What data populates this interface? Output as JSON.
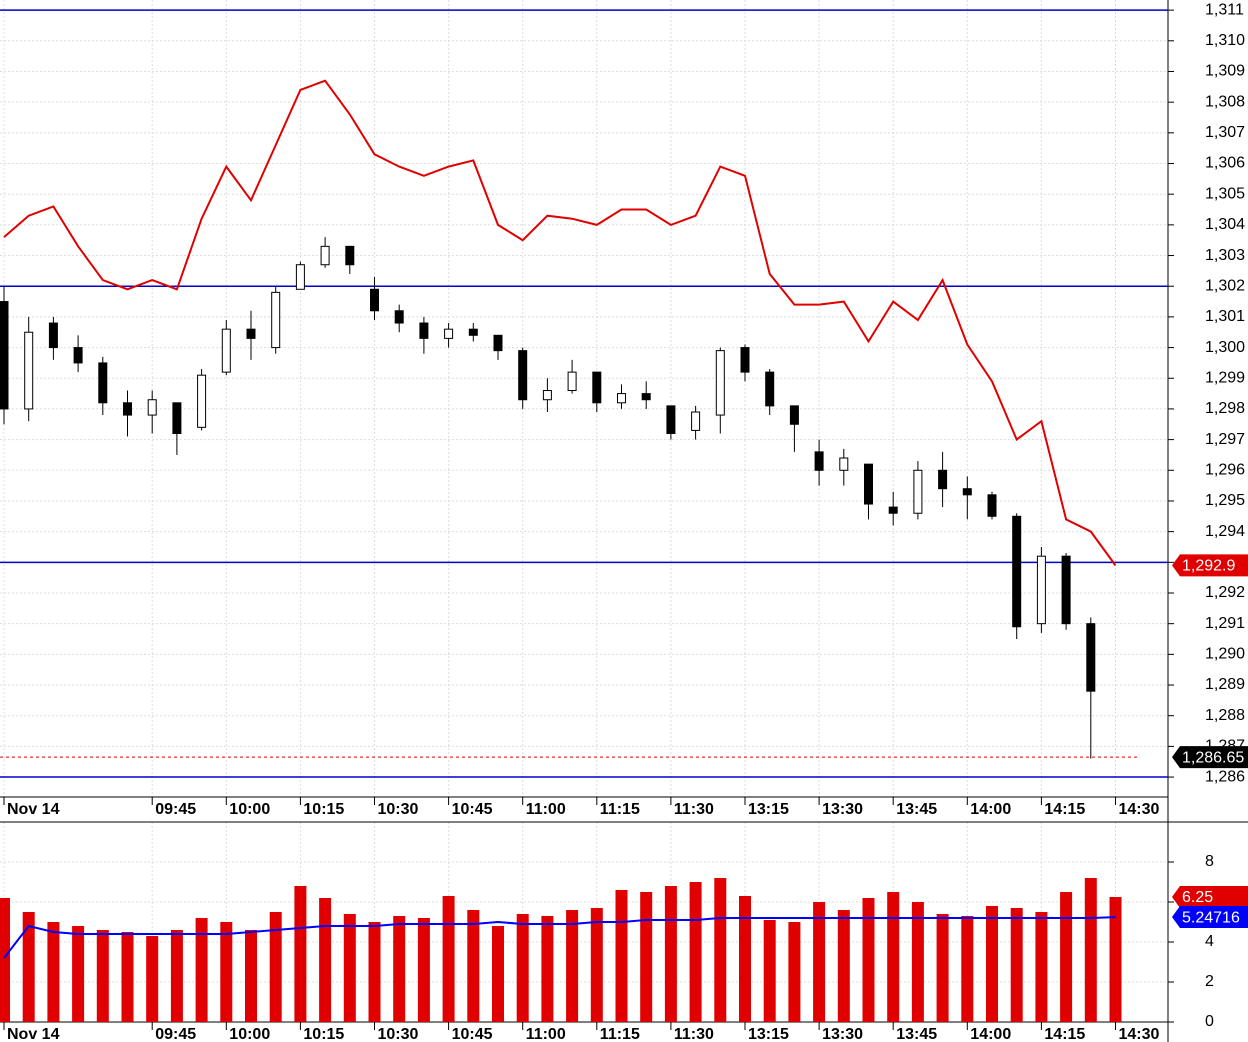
{
  "chart_data": [
    {
      "type": "candlestick",
      "categories": [
        "Nov 14",
        null,
        null,
        null,
        null,
        null,
        "09:45",
        null,
        null,
        "10:00",
        null,
        null,
        "10:15",
        null,
        null,
        "10:30",
        null,
        null,
        "10:45",
        null,
        null,
        "11:00",
        null,
        null,
        "11:15",
        null,
        null,
        "11:30",
        null,
        null,
        "13:15",
        null,
        null,
        "13:30",
        null,
        null,
        "13:45",
        null,
        null,
        "14:00",
        null,
        null,
        "14:15",
        null,
        null,
        "14:30"
      ],
      "candles": {
        "open": [
          1301.5,
          1298,
          1300.8,
          1300,
          1299.5,
          1298.2,
          1297.8,
          1298.2,
          1297.4,
          1299.2,
          1300.6,
          1300,
          1301.9,
          1302.7,
          1303.3,
          1301.9,
          1301.2,
          1300.8,
          1300.3,
          1300.6,
          1300.4,
          1299.9,
          1298.3,
          1298.6,
          1299.2,
          1298.2,
          1298.5,
          1298.1,
          1297.3,
          1297.8,
          1300,
          1299.2,
          1298.1,
          1296.6,
          1296,
          1296.2,
          1294.8,
          1294.6,
          1296,
          1295.4,
          1295.2,
          1294.5,
          1291,
          1293.2,
          1291,
          null
        ],
        "high": [
          1302,
          1301,
          1301,
          1300.4,
          1299.7,
          1298.6,
          1298.6,
          1298.2,
          1299.3,
          1300.9,
          1301.2,
          1302,
          1302.8,
          1303.6,
          1303.3,
          1302.3,
          1301.4,
          1301,
          1300.8,
          1300.8,
          1300.4,
          1300,
          1299,
          1299.6,
          1299.2,
          1298.8,
          1298.9,
          1298.1,
          1298.1,
          1300,
          1300.1,
          1299.3,
          1298.1,
          1297,
          1296.7,
          1296.2,
          1295.3,
          1296.3,
          1296.6,
          1295.8,
          1295.3,
          1294.6,
          1293.5,
          1293.3,
          1291.2,
          null
        ],
        "low": [
          1297.5,
          1297.6,
          1299.6,
          1299.2,
          1297.8,
          1297.1,
          1297.2,
          1296.5,
          1297.3,
          1299.1,
          1299.6,
          1299.8,
          1301.9,
          1302.6,
          1302.4,
          1300.9,
          1300.5,
          1299.8,
          1300,
          1300.2,
          1299.6,
          1298,
          1297.9,
          1298.5,
          1297.9,
          1298,
          1298,
          1297,
          1297,
          1297.2,
          1298.9,
          1297.8,
          1296.6,
          1295.5,
          1295.5,
          1294.4,
          1294.2,
          1294.4,
          1294.8,
          1294.4,
          1294.4,
          1290.5,
          1290.7,
          1290.8,
          1286.6,
          null
        ],
        "close": [
          1298,
          1300.5,
          1300,
          1299.5,
          1298.2,
          1297.8,
          1298.3,
          1297.2,
          1299.1,
          1300.6,
          1300.3,
          1301.8,
          1302.7,
          1303.3,
          1302.7,
          1301.2,
          1300.8,
          1300.3,
          1300.6,
          1300.4,
          1299.9,
          1298.3,
          1298.6,
          1299.2,
          1298.2,
          1298.5,
          1298.3,
          1297.2,
          1297.9,
          1299.9,
          1299.2,
          1298.1,
          1297.5,
          1296,
          1296.4,
          1294.9,
          1294.6,
          1296,
          1295.4,
          1295.2,
          1294.5,
          1290.9,
          1293.2,
          1291,
          1288.8,
          null
        ]
      },
      "line": {
        "color": "#e00000",
        "values": [
          1303.6,
          1304.3,
          1304.6,
          1303.3,
          1302.2,
          1301.9,
          1302.2,
          1301.9,
          1304.2,
          1305.9,
          1304.8,
          1306.6,
          1308.4,
          1308.7,
          1307.6,
          1306.3,
          1305.9,
          1305.6,
          1305.9,
          1306.1,
          1304,
          1303.5,
          1304.3,
          1304.2,
          1304,
          1304.5,
          1304.5,
          1304,
          1304.3,
          1305.9,
          1305.6,
          1302.4,
          1301.4,
          1301.4,
          1301.5,
          1300.2,
          1301.5,
          1300.9,
          1302.2,
          1300.1,
          1298.9,
          1297,
          1297.6,
          1294.4,
          1294,
          1292.9
        ]
      },
      "hlines": {
        "color": "#0000cc",
        "values": [
          1311,
          1302,
          1293,
          1286
        ]
      },
      "markers": [
        {
          "value": 1292.9,
          "label": "1,292.9",
          "color": "#e00000"
        },
        {
          "value": 1286.65,
          "label": "1,286.65",
          "color": "#000000",
          "dashed": true
        }
      ],
      "ylim": [
        1285.35,
        1311.33
      ],
      "yticks": [
        {
          "value": 1286,
          "label": "1,286"
        },
        {
          "value": 1287,
          "label": "1,287"
        },
        {
          "value": 1288,
          "label": "1,288"
        },
        {
          "value": 1289,
          "label": "1,289"
        },
        {
          "value": 1290,
          "label": "1,290"
        },
        {
          "value": 1291,
          "label": "1,291"
        },
        {
          "value": 1292,
          "label": "1,292"
        },
        {
          "value": 1293,
          "label": "1,293"
        },
        {
          "value": 1294,
          "label": "1,294"
        },
        {
          "value": 1295,
          "label": "1,295"
        },
        {
          "value": 1296,
          "label": "1,296"
        },
        {
          "value": 1297,
          "label": "1,297"
        },
        {
          "value": 1298,
          "label": "1,298"
        },
        {
          "value": 1299,
          "label": "1,299"
        },
        {
          "value": 1300,
          "label": "1,300"
        },
        {
          "value": 1301,
          "label": "1,301"
        },
        {
          "value": 1302,
          "label": "1,302"
        },
        {
          "value": 1303,
          "label": "1,303"
        },
        {
          "value": 1304,
          "label": "1,304"
        },
        {
          "value": 1305,
          "label": "1,305"
        },
        {
          "value": 1306,
          "label": "1,306"
        },
        {
          "value": 1307,
          "label": "1,307"
        },
        {
          "value": 1308,
          "label": "1,308"
        },
        {
          "value": 1309,
          "label": "1,309"
        },
        {
          "value": 1310,
          "label": "1,310"
        },
        {
          "value": 1311,
          "label": "1,311"
        }
      ],
      "grid": true
    },
    {
      "type": "bar",
      "categories": [
        "Nov 14",
        null,
        null,
        null,
        null,
        null,
        "09:45",
        null,
        null,
        "10:00",
        null,
        null,
        "10:15",
        null,
        null,
        "10:30",
        null,
        null,
        "10:45",
        null,
        null,
        "11:00",
        null,
        null,
        "11:15",
        null,
        null,
        "11:30",
        null,
        null,
        "13:15",
        null,
        null,
        "13:30",
        null,
        null,
        "13:45",
        null,
        null,
        "14:00",
        null,
        null,
        "14:15",
        null,
        null,
        "14:30"
      ],
      "values": [
        6.2,
        5.5,
        5.0,
        4.8,
        4.6,
        4.5,
        4.3,
        4.6,
        5.2,
        5.0,
        4.6,
        5.5,
        6.8,
        6.2,
        5.4,
        5.0,
        5.3,
        5.2,
        6.3,
        5.6,
        4.8,
        5.4,
        5.3,
        5.6,
        5.7,
        6.6,
        6.5,
        6.8,
        7.0,
        7.2,
        6.3,
        5.1,
        5.0,
        6.0,
        5.6,
        6.2,
        6.5,
        6.0,
        5.4,
        5.3,
        5.8,
        5.7,
        5.5,
        6.5,
        7.2,
        6.25
      ],
      "color": "#e00000",
      "line": {
        "color": "#0000ff",
        "values": [
          3.2,
          4.8,
          4.5,
          4.4,
          4.4,
          4.4,
          4.4,
          4.4,
          4.4,
          4.4,
          4.5,
          4.6,
          4.7,
          4.8,
          4.8,
          4.8,
          4.9,
          4.9,
          4.9,
          4.9,
          5.0,
          4.9,
          4.9,
          4.9,
          5.0,
          5.0,
          5.1,
          5.1,
          5.1,
          5.2,
          5.2,
          5.2,
          5.2,
          5.2,
          5.2,
          5.2,
          5.2,
          5.2,
          5.2,
          5.2,
          5.2,
          5.2,
          5.2,
          5.2,
          5.2,
          5.24716
        ]
      },
      "markers": [
        {
          "value": 6.25,
          "color": "#e00000"
        },
        {
          "value": 5.24716,
          "color": "#0000ff"
        }
      ],
      "ylim": [
        0,
        10
      ],
      "yticks": [
        0,
        2,
        4,
        6,
        8
      ],
      "grid": true
    }
  ]
}
